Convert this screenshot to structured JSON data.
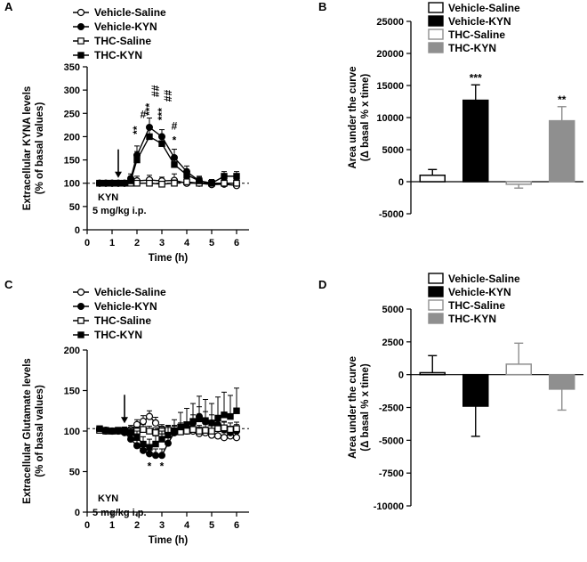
{
  "chart_data": [
    {
      "panel": "A",
      "type": "line",
      "xlabel": "Time (h)",
      "ylabel": "Extracellular KYNA levels",
      "ylabel2": "(% of basal values)",
      "xlim": [
        0,
        6.5
      ],
      "ylim": [
        0,
        350
      ],
      "xticks": [
        0,
        1,
        2,
        3,
        4,
        5,
        6
      ],
      "yticks": [
        0,
        50,
        100,
        150,
        200,
        250,
        300,
        350
      ],
      "baseline": 100,
      "annotation": [
        "KYN",
        "5 mg/kg i.p."
      ],
      "arrow_x": 1.25,
      "x": [
        0.5,
        0.75,
        1.0,
        1.25,
        1.5,
        1.75,
        2.0,
        2.5,
        3.0,
        3.5,
        4.0,
        4.5,
        5.0,
        5.5,
        6.0
      ],
      "series": [
        {
          "name": "Vehicle-Saline",
          "marker": "circle-open",
          "values": [
            100,
            100,
            100,
            100,
            100,
            102,
            105,
            107,
            105,
            106,
            100,
            100,
            97,
            98,
            95
          ],
          "errors": [
            5,
            4,
            5,
            4,
            5,
            6,
            10,
            10,
            8,
            14,
            8,
            8,
            6,
            6,
            6
          ]
        },
        {
          "name": "Vehicle-KYN",
          "marker": "circle-filled",
          "values": [
            100,
            100,
            100,
            100,
            100,
            110,
            160,
            220,
            200,
            155,
            125,
            105,
            100,
            100,
            100
          ],
          "errors": [
            5,
            4,
            5,
            4,
            6,
            10,
            20,
            20,
            15,
            18,
            12,
            10,
            8,
            8,
            7
          ]
        },
        {
          "name": "THC-Saline",
          "marker": "square-open",
          "values": [
            100,
            100,
            100,
            100,
            100,
            100,
            100,
            100,
            98,
            100,
            103,
            100,
            100,
            100,
            100
          ],
          "errors": [
            4,
            4,
            4,
            4,
            4,
            5,
            6,
            6,
            6,
            7,
            8,
            6,
            6,
            6,
            6
          ]
        },
        {
          "name": "THC-KYN",
          "marker": "square-filled",
          "values": [
            100,
            100,
            100,
            100,
            100,
            105,
            150,
            200,
            185,
            140,
            118,
            105,
            100,
            115,
            115
          ],
          "errors": [
            5,
            4,
            5,
            4,
            5,
            10,
            18,
            18,
            16,
            16,
            10,
            8,
            6,
            10,
            10
          ]
        }
      ],
      "significance": [
        {
          "x": 2.0,
          "level": 205,
          "text": "**"
        },
        {
          "x": 2.25,
          "level": 240,
          "text": "#"
        },
        {
          "x": 2.5,
          "level": 245,
          "text": "***"
        },
        {
          "x": 2.75,
          "level": 285,
          "text": "##"
        },
        {
          "x": 3.0,
          "level": 235,
          "text": "***"
        },
        {
          "x": 3.25,
          "level": 275,
          "text": "##"
        },
        {
          "x": 3.5,
          "level": 185,
          "text": "*"
        },
        {
          "x": 3.5,
          "level": 215,
          "text": "#"
        }
      ]
    },
    {
      "panel": "B",
      "type": "bar",
      "ylabel": "Area under the curve",
      "ylabel2": "(Δ basal % x time)",
      "ylim": [
        -5000,
        25000
      ],
      "yticks": [
        -5000,
        0,
        5000,
        10000,
        15000,
        20000,
        25000
      ],
      "categories": [
        "Vehicle-Saline",
        "Vehicle-KYN",
        "THC-Saline",
        "THC-KYN"
      ],
      "values": [
        1000,
        12700,
        -400,
        9500
      ],
      "errors": [
        900,
        2400,
        600,
        2200
      ],
      "colors": [
        "#ffffff",
        "#000000",
        "#ffffff",
        "#8f8f8f"
      ],
      "edge_colors": [
        "#000000",
        "#000000",
        "#8f8f8f",
        "#8f8f8f"
      ],
      "significance": [
        "",
        "***",
        "",
        "**"
      ]
    },
    {
      "panel": "C",
      "type": "line",
      "xlabel": "Time (h)",
      "ylabel": "Extracellular Glutamate levels",
      "ylabel2": "(% of basal values)",
      "xlim": [
        0,
        6.5
      ],
      "ylim": [
        0,
        200
      ],
      "xticks": [
        0,
        1,
        2,
        3,
        4,
        5,
        6
      ],
      "yticks": [
        0,
        50,
        100,
        150,
        200
      ],
      "baseline": 103,
      "annotation": [
        "KYN",
        "5 mg/kg i.p."
      ],
      "arrow_x": 1.5,
      "x": [
        0.5,
        0.75,
        1.0,
        1.25,
        1.5,
        1.75,
        2.0,
        2.25,
        2.5,
        2.75,
        3.0,
        3.25,
        3.5,
        3.75,
        4.0,
        4.25,
        4.5,
        4.75,
        5.0,
        5.25,
        5.5,
        5.75,
        6.0
      ],
      "series": [
        {
          "name": "Vehicle-Saline",
          "marker": "circle-open",
          "values": [
            102,
            101,
            100,
            100,
            101,
            102,
            108,
            112,
            118,
            110,
            102,
            100,
            98,
            100,
            103,
            100,
            97,
            98,
            95,
            94,
            92,
            94,
            92
          ],
          "errors": [
            3,
            3,
            3,
            3,
            4,
            5,
            6,
            7,
            7,
            7,
            6,
            6,
            6,
            7,
            8,
            7,
            8,
            7,
            7,
            7,
            6,
            6,
            6
          ]
        },
        {
          "name": "Vehicle-KYN",
          "marker": "circle-filled",
          "values": [
            102,
            100,
            100,
            100,
            98,
            90,
            82,
            76,
            72,
            70,
            70,
            85,
            98,
            100,
            100,
            110,
            118,
            112,
            110,
            108,
            102,
            98,
            100
          ],
          "errors": [
            3,
            3,
            3,
            3,
            4,
            6,
            8,
            8,
            8,
            8,
            8,
            8,
            9,
            10,
            10,
            10,
            12,
            12,
            10,
            10,
            9,
            8,
            8
          ]
        },
        {
          "name": "THC-Saline",
          "marker": "square-open",
          "values": [
            101,
            100,
            100,
            101,
            100,
            98,
            100,
            102,
            100,
            98,
            100,
            101,
            100,
            99,
            100,
            102,
            100,
            101,
            100,
            103,
            104,
            102,
            103
          ],
          "errors": [
            3,
            3,
            3,
            3,
            4,
            5,
            5,
            6,
            6,
            6,
            6,
            6,
            6,
            6,
            6,
            7,
            7,
            7,
            7,
            8,
            8,
            8,
            8
          ]
        },
        {
          "name": "THC-KYN",
          "marker": "square-filled",
          "values": [
            103,
            101,
            100,
            100,
            100,
            98,
            92,
            84,
            80,
            84,
            90,
            95,
            100,
            105,
            108,
            112,
            115,
            113,
            110,
            116,
            120,
            118,
            125
          ],
          "errors": [
            3,
            3,
            3,
            3,
            4,
            6,
            8,
            9,
            10,
            10,
            10,
            12,
            14,
            18,
            20,
            22,
            28,
            26,
            24,
            26,
            28,
            26,
            28
          ]
        }
      ],
      "significance": [
        {
          "x": 2.5,
          "level": 52,
          "text": "*"
        },
        {
          "x": 3.0,
          "level": 52,
          "text": "*"
        }
      ]
    },
    {
      "panel": "D",
      "type": "bar",
      "ylabel": "Area under the curve",
      "ylabel2": "(Δ basal % x time)",
      "ylim": [
        -10000,
        5000
      ],
      "yticks": [
        -10000,
        -7500,
        -5000,
        -2500,
        0,
        2500,
        5000
      ],
      "categories": [
        "Vehicle-Saline",
        "Vehicle-KYN",
        "THC-Saline",
        "THC-KYN"
      ],
      "values": [
        150,
        -2400,
        800,
        -1100
      ],
      "errors": [
        1300,
        2300,
        1600,
        1600
      ],
      "colors": [
        "#ffffff",
        "#000000",
        "#ffffff",
        "#8f8f8f"
      ],
      "edge_colors": [
        "#000000",
        "#000000",
        "#8f8f8f",
        "#8f8f8f"
      ],
      "significance": [
        "",
        "",
        "",
        ""
      ]
    }
  ]
}
